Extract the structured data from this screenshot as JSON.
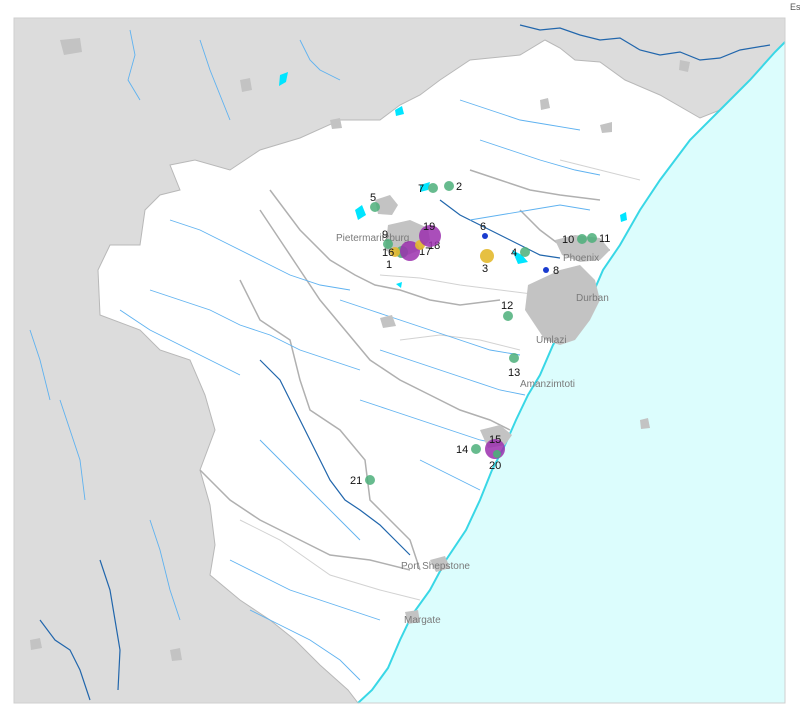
{
  "map": {
    "corner_label": "Es",
    "colors": {
      "ocean": "#dcfdfd",
      "coast": "#39d7e6",
      "land_outside": "#dcdcdc",
      "study_area": "#ffffff",
      "urban": "#c3c3c3",
      "river_major": "#2166ac",
      "river_minor": "#5fb2f0",
      "catchment_border": "#b0b0b0",
      "dam": "#00e5ff",
      "site_green": "#4caf7a",
      "site_purple": "#9b2fae",
      "site_yellow": "#e3b92e",
      "site_blue": "#1a3ccf"
    },
    "places": [
      {
        "id": "pietermaritzburg",
        "name": "Pietermaritzburg"
      },
      {
        "id": "phoenix",
        "name": "Phoenix"
      },
      {
        "id": "durban",
        "name": "Durban"
      },
      {
        "id": "umlazi",
        "name": "Umlazi"
      },
      {
        "id": "amanzimtoti",
        "name": "Amanzimtoti"
      },
      {
        "id": "port-shepstone",
        "name": "Port Shepstone"
      },
      {
        "id": "margate",
        "name": "Margate"
      }
    ],
    "sites": [
      {
        "id": "1",
        "label": "1",
        "category": "green"
      },
      {
        "id": "2",
        "label": "2",
        "category": "green"
      },
      {
        "id": "3",
        "label": "3",
        "category": "yellow"
      },
      {
        "id": "4",
        "label": "4",
        "category": "green"
      },
      {
        "id": "5",
        "label": "5",
        "category": "green"
      },
      {
        "id": "6",
        "label": "6",
        "category": "blue"
      },
      {
        "id": "7",
        "label": "7",
        "category": "green"
      },
      {
        "id": "8",
        "label": "8",
        "category": "blue"
      },
      {
        "id": "9",
        "label": "9",
        "category": "green"
      },
      {
        "id": "10",
        "label": "10",
        "category": "green"
      },
      {
        "id": "11",
        "label": "11",
        "category": "green"
      },
      {
        "id": "12",
        "label": "12",
        "category": "green"
      },
      {
        "id": "13",
        "label": "13",
        "category": "green"
      },
      {
        "id": "14",
        "label": "14",
        "category": "green"
      },
      {
        "id": "15",
        "label": "15",
        "category": "purple"
      },
      {
        "id": "16",
        "label": "16",
        "category": "yellow"
      },
      {
        "id": "17",
        "label": "17",
        "category": "purple"
      },
      {
        "id": "18",
        "label": "18",
        "category": "yellow"
      },
      {
        "id": "19",
        "label": "19",
        "category": "purple"
      },
      {
        "id": "20",
        "label": "20",
        "category": "green"
      },
      {
        "id": "21",
        "label": "21",
        "category": "green"
      }
    ]
  }
}
